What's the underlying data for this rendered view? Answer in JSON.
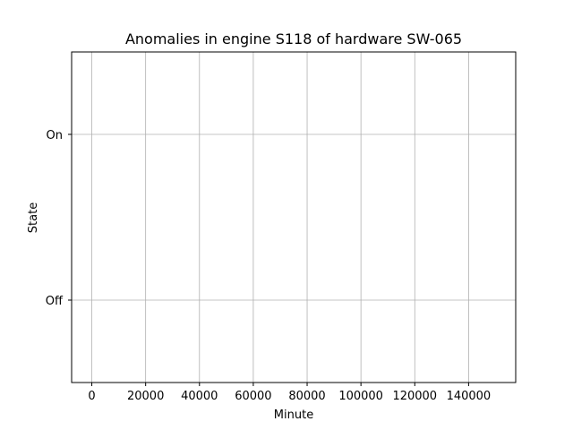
{
  "chart_data": {
    "type": "line",
    "title": "Anomalies in engine S118 of hardware SW-065",
    "xlabel": "Minute",
    "ylabel": "State",
    "xlim": [
      -7500,
      157500
    ],
    "x_ticks": [
      0,
      20000,
      40000,
      60000,
      80000,
      100000,
      120000,
      140000
    ],
    "y_ticks": [
      "Off",
      "On"
    ],
    "grid": true,
    "series": []
  }
}
